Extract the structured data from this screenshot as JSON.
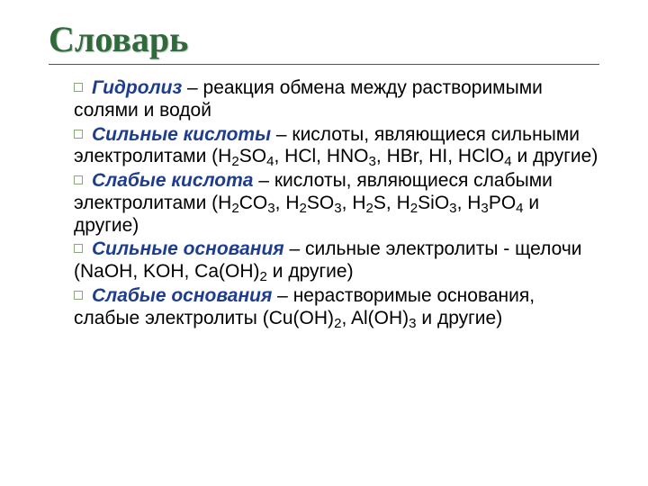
{
  "colors": {
    "title": "#2f6b3a",
    "term": "#1f3d8f",
    "text": "#000000",
    "background": "#ffffff",
    "bullet_border": "#8aa77a"
  },
  "typography": {
    "title_family": "Times New Roman",
    "title_size_pt": 40,
    "body_family": "Arial",
    "body_size_pt": 21
  },
  "title": "Словарь",
  "entries": [
    {
      "term": "Гидролиз",
      "def_pre": " – реакция обмена между растворимыми солями и водой",
      "formulas": [],
      "def_post": ""
    },
    {
      "term": "Сильные кислоты",
      "def_pre": " – кислоты, являющиеся сильными электролитами (",
      "formulas": [
        "H2SO4",
        "HCl",
        "HNO3",
        "HBr",
        "HI",
        "HClO4"
      ],
      "def_post": " и другие)"
    },
    {
      "term": "Слабые кислота",
      "def_pre": " – кислоты, являющиеся слабыми электролитами (",
      "formulas": [
        "H2CO3",
        "H2SO3",
        "H2S",
        "H2SiO3",
        "H3PO4"
      ],
      "def_post": " и другие)"
    },
    {
      "term": "Сильные основания",
      "def_pre": " – сильные электролиты - щелочи (",
      "formulas": [
        "NaOH",
        "KOH",
        "Ca(OH)2"
      ],
      "def_post": " и другие)"
    },
    {
      "term": "Слабые основания",
      "def_pre": " – нерастворимые основания, слабые электролиты (",
      "formulas": [
        "Cu(OH)2",
        "Al(OH)3"
      ],
      "def_post": " и другие)"
    }
  ]
}
